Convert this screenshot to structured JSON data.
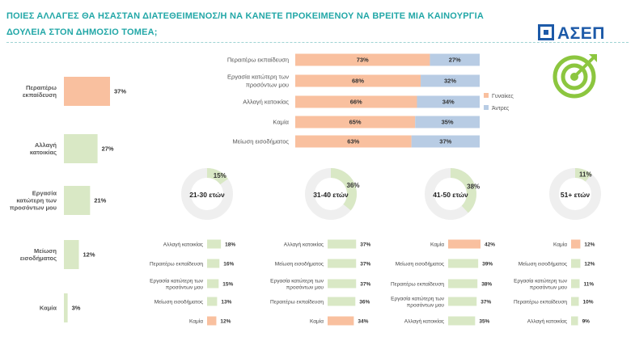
{
  "title": "ΠΟΙΕΣ ΑΛΛΑΓΕΣ ΘΑ ΗΣΑΣΤΑΝ ΔΙΑΤΕΘΕΙΜΕΝΟΣ/Η ΝΑ ΚΑΝΕΤΕ ΠΡΟΚΕΙΜΕΝΟΥ ΝΑ ΒΡΕΙΤΕ ΜΙΑ ΚΑΙΝΟΥΡΓΙΑ ΔΟΥΛΕΙΑ ΣΤΟΝ ΔΗΜΟΣΙΟ ΤΟΜΕΑ;",
  "logo": {
    "text": "ΑΣΕΠ",
    "icon": "target-icon"
  },
  "colors": {
    "accent": "#22a7a7",
    "orange": "#f9c09f",
    "green": "#d9e8c5",
    "blue": "#b8cce4",
    "donut_bg": "#efefef",
    "logo": "#1d5aa8",
    "icon_green": "#8cc63f"
  },
  "chart_data": [
    {
      "type": "bar",
      "orientation": "horizontal",
      "categories": [
        "Περαιτέρω εκπαίδευση",
        "Αλλαγή κατοικίας",
        "Εργασία κατώτερη των προσόντων μου",
        "Μείωση εισοδήματος",
        "Καμία"
      ],
      "values": [
        37,
        27,
        21,
        12,
        3
      ],
      "data_labels": [
        "37%",
        "27%",
        "21%",
        "12%",
        "3%"
      ],
      "xlim": [
        0,
        37
      ]
    },
    {
      "type": "bar",
      "orientation": "horizontal",
      "stacked": true,
      "categories": [
        "Περαιτέρω εκπαίδευση",
        "Εργασία κατώτερη των προσόντων μου",
        "Αλλαγή κατοικίας",
        "Καμία",
        "Μείωση εισοδήματος"
      ],
      "series": [
        {
          "name": "Γυναίκες",
          "values": [
            73,
            68,
            66,
            65,
            63
          ],
          "labels": [
            "73%",
            "68%",
            "66%",
            "65%",
            "63%"
          ]
        },
        {
          "name": "Άντρες",
          "values": [
            27,
            32,
            34,
            35,
            37
          ],
          "labels": [
            "27%",
            "32%",
            "34%",
            "35%",
            "37%"
          ]
        }
      ],
      "legend": "right"
    },
    {
      "type": "pie",
      "donuts": [
        {
          "label": "21-30 ετών",
          "value": 15,
          "value_label": "15%"
        },
        {
          "label": "31-40 ετών",
          "value": 36,
          "value_label": "36%"
        },
        {
          "label": "41-50 ετών",
          "value": 38,
          "value_label": "38%"
        },
        {
          "label": "51+ ετών",
          "value": 11,
          "value_label": "11%"
        }
      ]
    },
    {
      "type": "bar",
      "orientation": "horizontal",
      "groups": [
        {
          "age": "21-30 ετών",
          "items": [
            {
              "label": "Αλλαγή κατοικίας",
              "value": 18,
              "value_label": "18%",
              "highlight": false
            },
            {
              "label": "Περαιτέρω εκπαίδευση",
              "value": 16,
              "value_label": "16%",
              "highlight": false
            },
            {
              "label": "Εργασία κατώτερη των προσόντων μου",
              "value": 15,
              "value_label": "15%",
              "highlight": false
            },
            {
              "label": "Μείωση εισοδήματος",
              "value": 13,
              "value_label": "13%",
              "highlight": false
            },
            {
              "label": "Καμία",
              "value": 12,
              "value_label": "12%",
              "highlight": true
            }
          ]
        },
        {
          "age": "31-40 ετών",
          "items": [
            {
              "label": "Αλλαγή κατοικίας",
              "value": 37,
              "value_label": "37%",
              "highlight": false
            },
            {
              "label": "Μείωση εισοδήματος",
              "value": 37,
              "value_label": "37%",
              "highlight": false
            },
            {
              "label": "Εργασία κατώτερη των προσόντων μου",
              "value": 37,
              "value_label": "37%",
              "highlight": false
            },
            {
              "label": "Περαιτέρω εκπαίδευση",
              "value": 36,
              "value_label": "36%",
              "highlight": false
            },
            {
              "label": "Καμία",
              "value": 34,
              "value_label": "34%",
              "highlight": true
            }
          ]
        },
        {
          "age": "41-50 ετών",
          "items": [
            {
              "label": "Καμία",
              "value": 42,
              "value_label": "42%",
              "highlight": true
            },
            {
              "label": "Μείωση εισοδήματος",
              "value": 39,
              "value_label": "39%",
              "highlight": false
            },
            {
              "label": "Περαιτέρω εκπαίδευση",
              "value": 38,
              "value_label": "38%",
              "highlight": false
            },
            {
              "label": "Εργασία κατώτερη των προσόντων μου",
              "value": 37,
              "value_label": "37%",
              "highlight": false
            },
            {
              "label": "Αλλαγή κατοικίας",
              "value": 35,
              "value_label": "35%",
              "highlight": false
            }
          ]
        },
        {
          "age": "51+ ετών",
          "items": [
            {
              "label": "Καμία",
              "value": 12,
              "value_label": "12%",
              "highlight": true
            },
            {
              "label": "Μείωση εισοδήματος",
              "value": 12,
              "value_label": "12%",
              "highlight": false
            },
            {
              "label": "Εργασία κατώτερη των προσόντων μου",
              "value": 11,
              "value_label": "11%",
              "highlight": false
            },
            {
              "label": "Περαιτέρω εκπαίδευση",
              "value": 10,
              "value_label": "10%",
              "highlight": false
            },
            {
              "label": "Αλλαγή κατοικίας",
              "value": 9,
              "value_label": "9%",
              "highlight": false
            }
          ]
        }
      ]
    }
  ]
}
